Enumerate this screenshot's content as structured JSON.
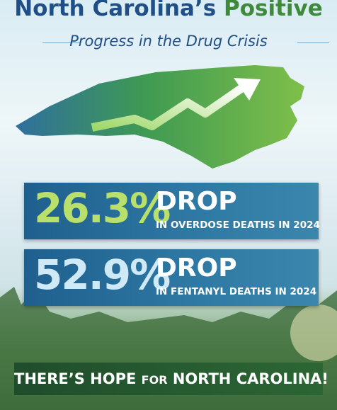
{
  "title": {
    "parts": [
      "North Carolina’s",
      "Positive"
    ]
  },
  "subtitle": "Progress in the Drug Crisis",
  "stats": [
    {
      "value": "26.3%",
      "headline": "DROP",
      "detail": "IN OVERDOSE DEATHS IN 2024"
    },
    {
      "value": "52.9%",
      "headline": "DROP",
      "detail": "IN FENTANYL DEATHS IN 2024"
    }
  ],
  "footer": {
    "parts": [
      "THERE’S HOPE",
      "FOR",
      "NORTH CAROLINA!"
    ]
  }
}
